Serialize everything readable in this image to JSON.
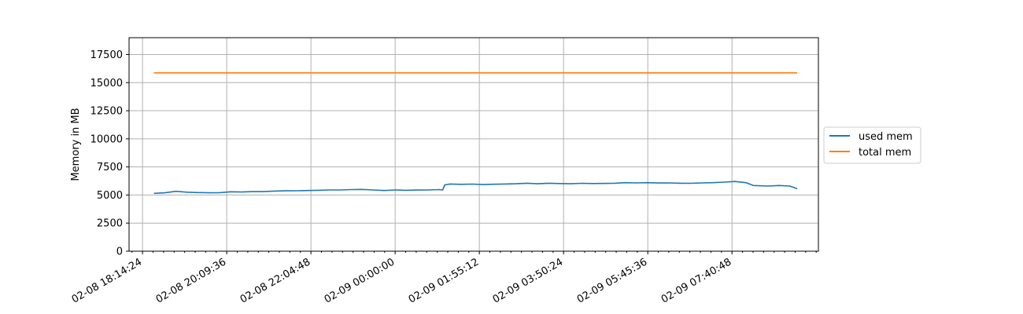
{
  "chart_data": {
    "type": "line",
    "title": "",
    "xlabel": "",
    "ylabel": "Memory in MB",
    "x_axis": {
      "type": "datetime",
      "range": [
        "02-08 17:56:00",
        "02-09 09:39:00"
      ],
      "major_ticks": [
        "02-08 18:14:24",
        "02-08 20:09:36",
        "02-08 22:04:48",
        "02-09 00:00:00",
        "02-09 01:55:12",
        "02-09 03:50:24",
        "02-09 05:45:36",
        "02-09 07:40:48"
      ]
    },
    "y_axis": {
      "range": [
        0,
        19000
      ],
      "ticks": [
        0,
        2500,
        5000,
        7500,
        10000,
        12500,
        15000,
        17500
      ]
    },
    "grid": true,
    "legend": {
      "placement": "outside-right-center"
    },
    "series": [
      {
        "name": "used mem",
        "color": "#1f77b4",
        "points": [
          [
            "02-08 18:30",
            5150
          ],
          [
            "02-08 18:45",
            5200
          ],
          [
            "02-08 19:00",
            5330
          ],
          [
            "02-08 19:15",
            5250
          ],
          [
            "02-08 19:30",
            5220
          ],
          [
            "02-08 19:45",
            5200
          ],
          [
            "02-08 20:00",
            5210
          ],
          [
            "02-08 20:15",
            5290
          ],
          [
            "02-08 20:30",
            5270
          ],
          [
            "02-08 20:45",
            5300
          ],
          [
            "02-08 21:00",
            5300
          ],
          [
            "02-08 21:15",
            5350
          ],
          [
            "02-08 21:30",
            5370
          ],
          [
            "02-08 21:45",
            5380
          ],
          [
            "02-08 22:00",
            5400
          ],
          [
            "02-08 22:15",
            5420
          ],
          [
            "02-08 22:30",
            5450
          ],
          [
            "02-08 22:45",
            5450
          ],
          [
            "02-08 23:00",
            5480
          ],
          [
            "02-08 23:15",
            5500
          ],
          [
            "02-08 23:30",
            5450
          ],
          [
            "02-08 23:45",
            5400
          ],
          [
            "02-09 00:00",
            5450
          ],
          [
            "02-09 00:15",
            5420
          ],
          [
            "02-09 00:30",
            5440
          ],
          [
            "02-09 00:45",
            5450
          ],
          [
            "02-09 01:00",
            5480
          ],
          [
            "02-09 01:05",
            5450
          ],
          [
            "02-09 01:08",
            5900
          ],
          [
            "02-09 01:15",
            5980
          ],
          [
            "02-09 01:30",
            5950
          ],
          [
            "02-09 01:45",
            5970
          ],
          [
            "02-09 02:00",
            5930
          ],
          [
            "02-09 02:15",
            5960
          ],
          [
            "02-09 02:30",
            5980
          ],
          [
            "02-09 02:45",
            6000
          ],
          [
            "02-09 03:00",
            6050
          ],
          [
            "02-09 03:15",
            6000
          ],
          [
            "02-09 03:30",
            6050
          ],
          [
            "02-09 03:45",
            6020
          ],
          [
            "02-09 04:00",
            6000
          ],
          [
            "02-09 04:15",
            6040
          ],
          [
            "02-09 04:30",
            6020
          ],
          [
            "02-09 04:45",
            6030
          ],
          [
            "02-09 05:00",
            6050
          ],
          [
            "02-09 05:15",
            6100
          ],
          [
            "02-09 05:30",
            6080
          ],
          [
            "02-09 05:45",
            6100
          ],
          [
            "02-09 06:00",
            6070
          ],
          [
            "02-09 06:15",
            6080
          ],
          [
            "02-09 06:30",
            6050
          ],
          [
            "02-09 06:45",
            6040
          ],
          [
            "02-09 07:00",
            6080
          ],
          [
            "02-09 07:15",
            6100
          ],
          [
            "02-09 07:30",
            6150
          ],
          [
            "02-09 07:45",
            6200
          ],
          [
            "02-09 08:00",
            6100
          ],
          [
            "02-09 08:10",
            5850
          ],
          [
            "02-09 08:30",
            5800
          ],
          [
            "02-09 08:45",
            5850
          ],
          [
            "02-09 09:00",
            5800
          ],
          [
            "02-09 09:10",
            5550
          ]
        ]
      },
      {
        "name": "total mem",
        "color": "#ff7f0e",
        "points": [
          [
            "02-08 18:30",
            15870
          ],
          [
            "02-09 09:10",
            15870
          ]
        ]
      }
    ]
  }
}
